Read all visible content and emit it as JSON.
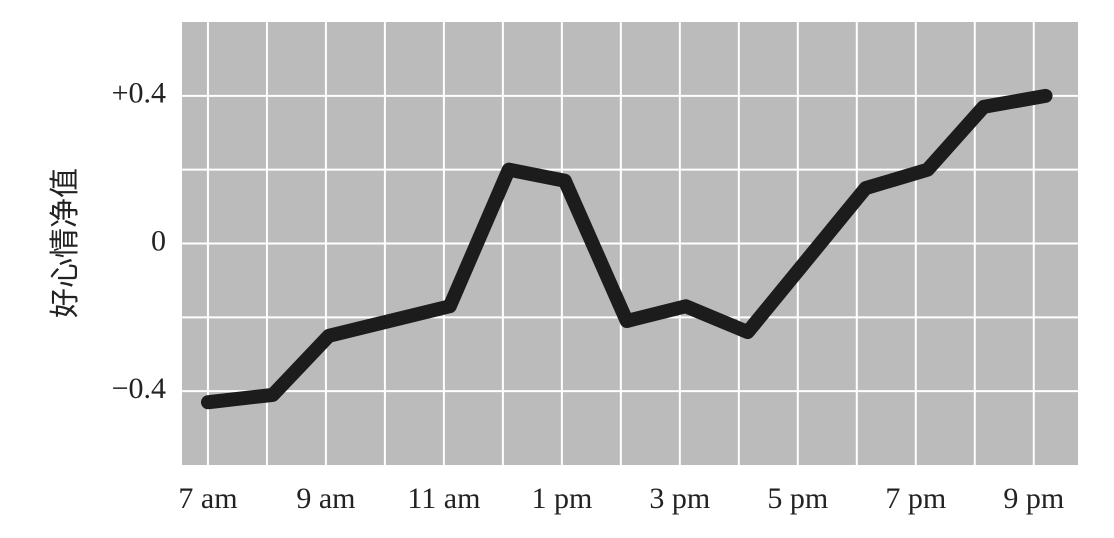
{
  "chart_data": {
    "type": "line",
    "ylabel": "好心情净值",
    "x": [
      7,
      8.1,
      9.05,
      11.1,
      12.1,
      13.05,
      14.1,
      15.1,
      16.15,
      18.15,
      19.2,
      20.15,
      21.2
    ],
    "series": [
      {
        "color": "#1c1c1c",
        "values": [
          -0.43,
          -0.41,
          -0.25,
          -0.17,
          0.2,
          0.17,
          -0.21,
          -0.17,
          -0.24,
          0.15,
          0.2,
          0.37,
          0.4
        ]
      }
    ],
    "xlim": [
      6.56,
      21.75
    ],
    "xticks": [
      {
        "value": 7,
        "label": "7 am"
      },
      {
        "value": 9,
        "label": "9 am"
      },
      {
        "value": 11,
        "label": "11 am"
      },
      {
        "value": 13,
        "label": "1 pm"
      },
      {
        "value": 15,
        "label": "3 pm"
      },
      {
        "value": 17,
        "label": "5 pm"
      },
      {
        "value": 19,
        "label": "7 pm"
      },
      {
        "value": 21,
        "label": "9 pm"
      }
    ],
    "ylim": [
      -0.6,
      0.6
    ],
    "yticks": [
      {
        "value": -0.4,
        "label": "−0.4"
      },
      0,
      {
        "value": 0.4,
        "label": "+0.4"
      }
    ],
    "grid": true,
    "background": "#bcbbbb"
  }
}
